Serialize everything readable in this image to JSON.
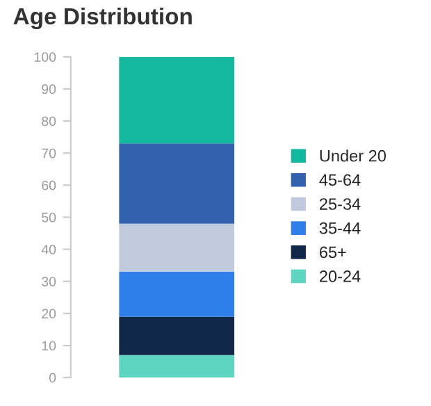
{
  "chart_data": {
    "type": "bar",
    "title": "Age Distribution",
    "stacked": true,
    "categories": [
      null
    ],
    "series": [
      {
        "name": "20-24",
        "color": "#5dd5c0",
        "values": [
          7
        ]
      },
      {
        "name": "65+",
        "color": "#10274a",
        "values": [
          12
        ]
      },
      {
        "name": "35-44",
        "color": "#2f7fea",
        "values": [
          14
        ]
      },
      {
        "name": "25-34",
        "color": "#c1cadc",
        "values": [
          15
        ]
      },
      {
        "name": "45-64",
        "color": "#3261ae",
        "values": [
          25
        ]
      },
      {
        "name": "Under 20",
        "color": "#13b89f",
        "values": [
          27
        ]
      }
    ],
    "ylim": [
      0,
      100
    ],
    "yticks": [
      0,
      10,
      20,
      30,
      40,
      50,
      60,
      70,
      80,
      90,
      100
    ],
    "grid": false,
    "legend": "right"
  }
}
